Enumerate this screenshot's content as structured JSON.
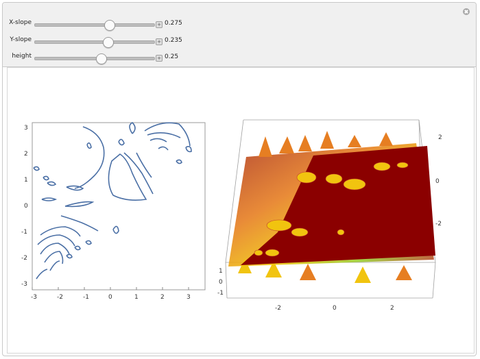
{
  "controls": [
    {
      "label": "X-slope",
      "value": "0.275",
      "position": 0.62
    },
    {
      "label": "Y-slope",
      "value": "0.235",
      "position": 0.61
    },
    {
      "label": "height",
      "value": "0.25",
      "position": 0.55
    }
  ],
  "contour_plot": {
    "x_ticks": [
      "-3",
      "-2",
      "-1",
      "0",
      "1",
      "2",
      "3"
    ],
    "y_ticks": [
      "3",
      "2",
      "1",
      "0",
      "-1",
      "-2",
      "-3"
    ],
    "line_color": "#4a6fa5"
  },
  "surface_plot": {
    "x_ticks": [
      "-2",
      "0",
      "2"
    ],
    "z_ticks_right": [
      "2",
      "0",
      "-2"
    ],
    "z_ticks_left": [
      "1",
      "0",
      "-1"
    ],
    "plane_color": "#8b0000",
    "surface_colors": [
      "#c0392b",
      "#e67e22",
      "#f1c40f",
      "#9acd32"
    ]
  },
  "colors": {
    "panel_bg": "#f0f0f0",
    "border": "#c8c8c8"
  }
}
